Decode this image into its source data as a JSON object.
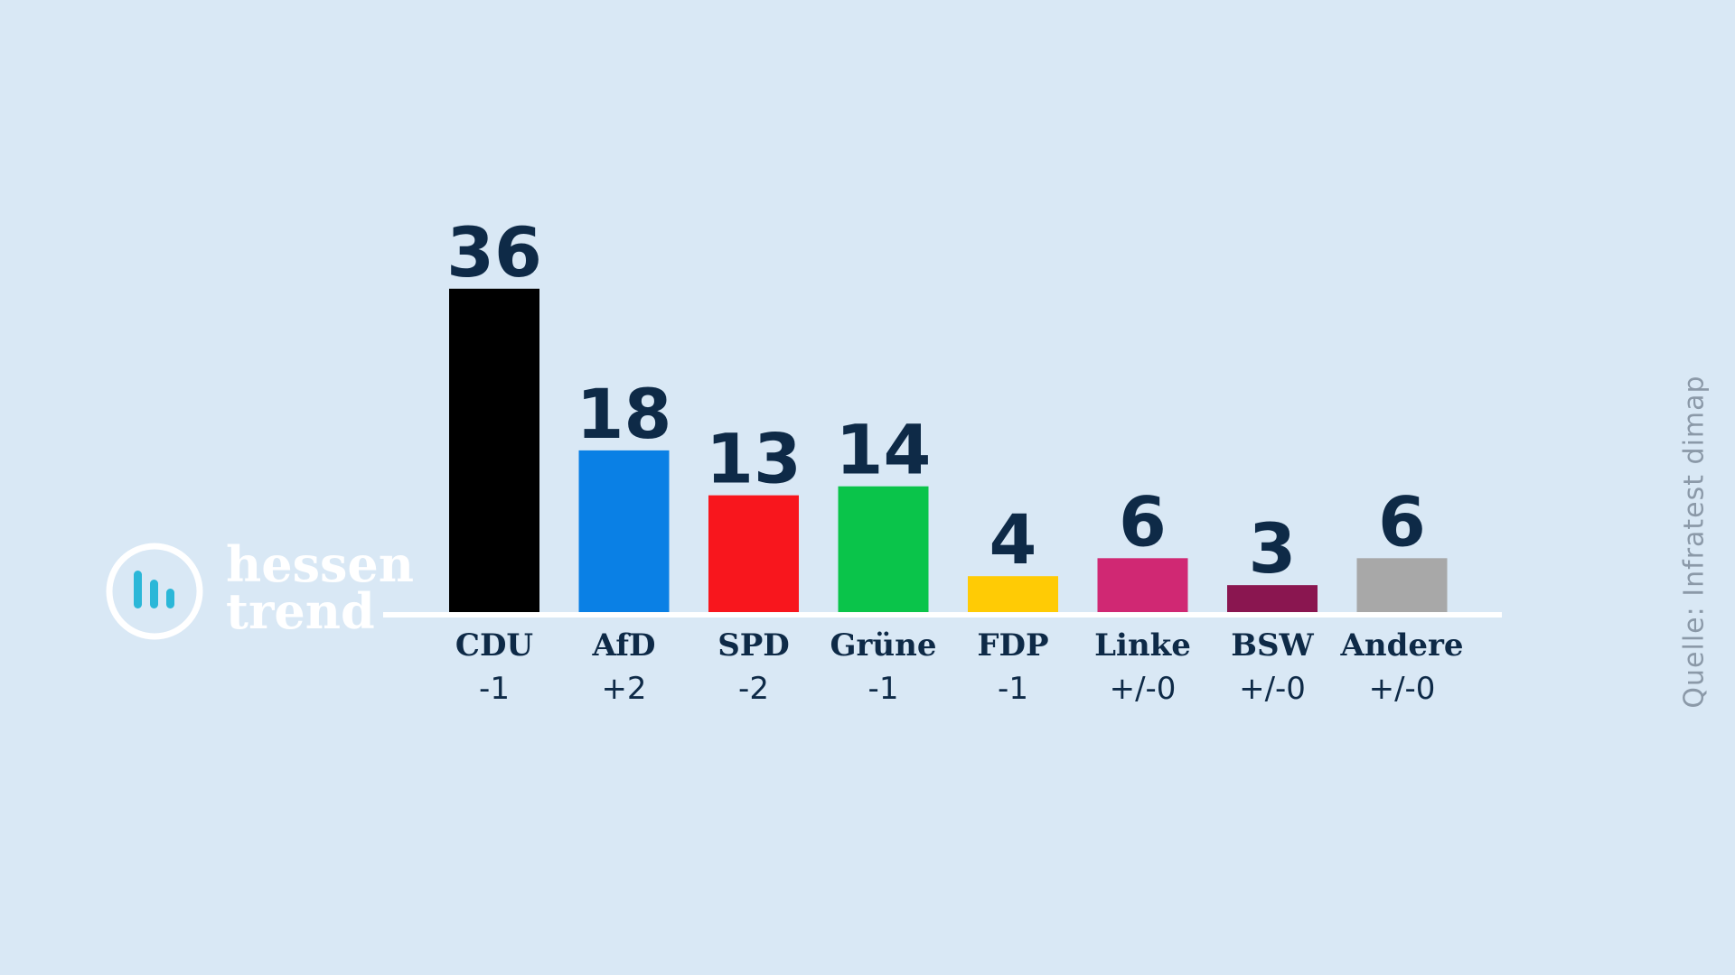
{
  "colors": {
    "background": "#d9e8f5",
    "text": "#0e2a47",
    "baseline": "#ffffff",
    "logo": "#ffffff",
    "logo_bars": "#2bb7d8",
    "source": "#8b99a8"
  },
  "logo": {
    "word1": "hessen",
    "word2": "trend",
    "icon": "bar-chart-circle-icon"
  },
  "source_label": "Quelle:  Infratest dimap",
  "chart_data": {
    "type": "bar",
    "title": "",
    "xlabel": "",
    "ylabel": "",
    "ylim": [
      0,
      40
    ],
    "grid": false,
    "legend": "none",
    "categories": [
      "CDU",
      "AfD",
      "SPD",
      "Grüne",
      "FDP",
      "Linke",
      "BSW",
      "Andere"
    ],
    "values": [
      36,
      18,
      13,
      14,
      4,
      6,
      3,
      6
    ],
    "value_labels": [
      "36",
      "18",
      "13",
      "14",
      "4",
      "6",
      "3",
      "6"
    ],
    "changes": [
      "-1",
      "+2",
      "-2",
      "-1",
      "-1",
      "+/-0",
      "+/-0",
      "+/-0"
    ],
    "bar_colors": [
      "#000000",
      "#0a80e5",
      "#f8161d",
      "#0ac44a",
      "#ffcb05",
      "#d02873",
      "#8a1650",
      "#a8a8a8"
    ]
  }
}
